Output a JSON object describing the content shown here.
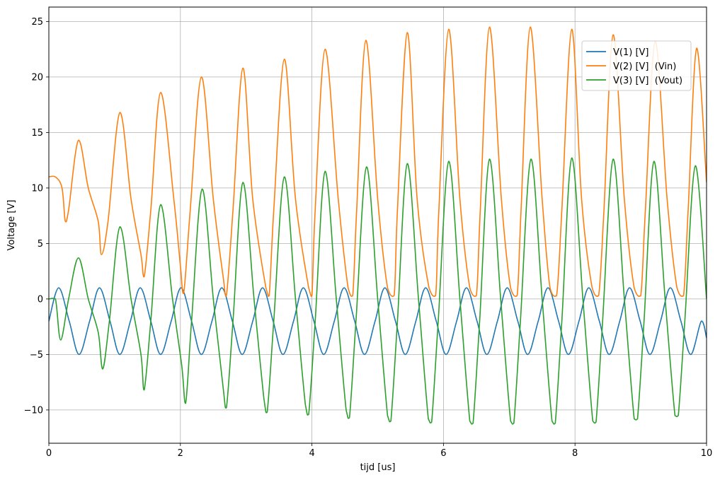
{
  "chart_data": {
    "type": "line",
    "title": "",
    "xlabel": "tijd [us]",
    "ylabel": "Voltage [V]",
    "xlim": [
      0,
      10
    ],
    "ylim": [
      -13,
      26.3
    ],
    "xticks": [
      0,
      2,
      4,
      6,
      8,
      10
    ],
    "xtick_labels": [
      "0",
      "2",
      "4",
      "6",
      "8",
      "10"
    ],
    "yticks": [
      -10,
      -5,
      0,
      5,
      10,
      15,
      20,
      25
    ],
    "ytick_labels": [
      "−10",
      "−5",
      "0",
      "5",
      "10",
      "15",
      "20",
      "25"
    ],
    "grid": true,
    "legend_position": "top-right",
    "series": [
      {
        "name": "V(1) [V]",
        "color": "#1f77b4",
        "x": [
          0,
          0.15,
          0.31,
          0.46,
          0.62,
          0.77,
          0.93,
          1.08,
          1.24,
          1.39,
          1.55,
          1.7,
          1.86,
          2.01,
          2.17,
          2.32,
          2.48,
          2.63,
          2.79,
          2.94,
          3.1,
          3.25,
          3.41,
          3.56,
          3.72,
          3.87,
          4.03,
          4.18,
          4.34,
          4.49,
          4.65,
          4.8,
          4.96,
          5.11,
          5.27,
          5.42,
          5.58,
          5.73,
          5.89,
          6.04,
          6.2,
          6.35,
          6.51,
          6.66,
          6.82,
          6.97,
          7.13,
          7.28,
          7.44,
          7.59,
          7.75,
          7.9,
          8.06,
          8.21,
          8.37,
          8.52,
          8.68,
          8.83,
          8.99,
          9.14,
          9.3,
          9.45,
          9.61,
          9.76,
          9.92,
          10
        ],
        "y": [
          -2,
          1,
          -2,
          -5,
          -2,
          1,
          -2,
          -5,
          -2,
          1,
          -2,
          -5,
          -2,
          1,
          -2,
          -5,
          -2,
          1,
          -2,
          -5,
          -2,
          1,
          -2,
          -5,
          -2,
          1,
          -2,
          -5,
          -2,
          1,
          -2,
          -5,
          -2,
          1,
          -2,
          -5,
          -2,
          1,
          -2,
          -5,
          -2,
          1,
          -2,
          -5,
          -2,
          1,
          -2,
          -5,
          -2,
          1,
          -2,
          -5,
          -2,
          1,
          -2,
          -5,
          -2,
          1,
          -2,
          -5,
          -2,
          1,
          -2,
          -5,
          -2,
          -3.5
        ]
      },
      {
        "name": "V(2) [V]  (Vin)",
        "color": "#ff7f0e",
        "x": [
          0,
          0.1,
          0.2,
          0.25,
          0.3,
          0.45,
          0.6,
          0.75,
          0.8,
          0.9,
          1.08,
          1.25,
          1.4,
          1.45,
          1.55,
          1.7,
          1.9,
          2.0,
          2.05,
          2.15,
          2.32,
          2.5,
          2.65,
          2.7,
          2.8,
          2.95,
          3.1,
          3.3,
          3.35,
          3.42,
          3.58,
          3.75,
          3.95,
          4.0,
          4.05,
          4.2,
          4.4,
          4.55,
          4.62,
          4.68,
          4.82,
          5.0,
          5.15,
          5.25,
          5.3,
          5.45,
          5.6,
          5.78,
          5.88,
          5.93,
          6.08,
          6.25,
          6.4,
          6.5,
          6.56,
          6.7,
          6.88,
          7.02,
          7.12,
          7.18,
          7.32,
          7.5,
          7.62,
          7.72,
          7.8,
          7.95,
          8.1,
          8.26,
          8.36,
          8.44,
          8.58,
          8.75,
          8.9,
          9.0,
          9.07,
          9.22,
          9.4,
          9.55,
          9.65,
          9.72,
          9.85,
          10
        ],
        "y": [
          11,
          11,
          10,
          7,
          8,
          14.3,
          10,
          7,
          4,
          7,
          16.8,
          9,
          4,
          2,
          8,
          18.6,
          9,
          3,
          0.5,
          8,
          20,
          9,
          2,
          0.3,
          8,
          20.8,
          9,
          1,
          0.3,
          8,
          21.6,
          9,
          1,
          0.3,
          8,
          22.5,
          9,
          1,
          0.3,
          8,
          23.3,
          9,
          1,
          0.3,
          8,
          24,
          9,
          1,
          0.3,
          8,
          24.3,
          9,
          1,
          0.3,
          8,
          24.5,
          9,
          1,
          0.3,
          8,
          24.5,
          9,
          1,
          0.3,
          8,
          24.3,
          9,
          1,
          0.3,
          8,
          23.8,
          9,
          1,
          0.3,
          8,
          23.2,
          9,
          1,
          0.3,
          8,
          22.6,
          10.5
        ]
      },
      {
        "name": "V(3) [V]  (Vout)",
        "color": "#2ca02c",
        "x": [
          0,
          0.1,
          0.18,
          0.3,
          0.45,
          0.6,
          0.75,
          0.82,
          0.92,
          1.08,
          1.25,
          1.4,
          1.45,
          1.55,
          1.7,
          1.88,
          2.02,
          2.08,
          2.17,
          2.33,
          2.5,
          2.65,
          2.7,
          2.8,
          2.95,
          3.12,
          3.27,
          3.32,
          3.42,
          3.58,
          3.75,
          3.9,
          3.95,
          4.05,
          4.2,
          4.37,
          4.52,
          4.57,
          4.67,
          4.83,
          5.0,
          5.15,
          5.2,
          5.3,
          5.45,
          5.62,
          5.77,
          5.82,
          5.92,
          6.08,
          6.25,
          6.4,
          6.45,
          6.55,
          6.7,
          6.87,
          7.02,
          7.07,
          7.17,
          7.33,
          7.5,
          7.65,
          7.7,
          7.8,
          7.95,
          8.12,
          8.27,
          8.32,
          8.42,
          8.58,
          8.75,
          8.9,
          8.95,
          9.05,
          9.2,
          9.37,
          9.52,
          9.57,
          9.67,
          9.83,
          10
        ],
        "y": [
          0,
          0,
          -3.7,
          0,
          3.7,
          0,
          -3,
          -6.3,
          -2,
          6.5,
          0,
          -5,
          -8.2,
          -2,
          8.5,
          0,
          -6,
          -9.4,
          -2,
          9.9,
          0,
          -8,
          -9.8,
          -2,
          10.5,
          0,
          -9,
          -10.2,
          -2,
          11,
          0,
          -9.5,
          -10.4,
          -2,
          11.5,
          0,
          -10,
          -10.7,
          -2,
          11.9,
          0,
          -10.5,
          -11,
          -2,
          12.2,
          0,
          -10.8,
          -11.1,
          -2,
          12.4,
          0,
          -11,
          -11.2,
          -2,
          12.6,
          0,
          -11,
          -11.2,
          -2,
          12.6,
          0,
          -11,
          -11.2,
          -2,
          12.7,
          0,
          -11,
          -11.1,
          -2,
          12.6,
          0,
          -10.8,
          -10.8,
          -2,
          12.4,
          0,
          -10.5,
          -10.5,
          -2,
          12,
          0
        ]
      }
    ]
  }
}
